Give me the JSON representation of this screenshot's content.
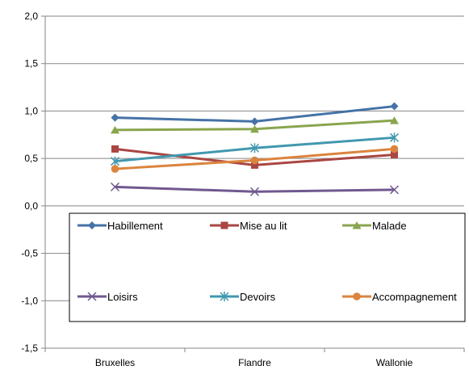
{
  "chart_data": {
    "type": "line",
    "title": "",
    "xlabel": "",
    "ylabel": "",
    "categories": [
      "Bruxelles",
      "Flandre",
      "Wallonie"
    ],
    "ylim": [
      -1.5,
      2.0
    ],
    "yticks": [
      "2,0",
      "1,5",
      "1,0",
      "0,5",
      "0,0",
      "-0,5",
      "-1,0",
      "-1,5"
    ],
    "ytick_values": [
      2.0,
      1.5,
      1.0,
      0.5,
      0.0,
      -0.5,
      -1.0,
      -1.5
    ],
    "grid": true,
    "legend_position": "inside-bottom",
    "series": [
      {
        "name": "Habillement",
        "values": [
          0.93,
          0.89,
          1.05
        ],
        "color": "#4572A7",
        "marker": "diamond"
      },
      {
        "name": "Mise au lit",
        "values": [
          0.6,
          0.43,
          0.54
        ],
        "color": "#AA4643",
        "marker": "square"
      },
      {
        "name": "Malade",
        "values": [
          0.8,
          0.81,
          0.9
        ],
        "color": "#89A54E",
        "marker": "triangle"
      },
      {
        "name": "Loisirs",
        "values": [
          0.2,
          0.15,
          0.17
        ],
        "color": "#71588F",
        "marker": "x"
      },
      {
        "name": "Devoirs",
        "values": [
          0.47,
          0.61,
          0.72
        ],
        "color": "#4198AF",
        "marker": "star"
      },
      {
        "name": "Accompagnement",
        "values": [
          0.39,
          0.48,
          0.6
        ],
        "color": "#DB843D",
        "marker": "circle"
      }
    ]
  }
}
